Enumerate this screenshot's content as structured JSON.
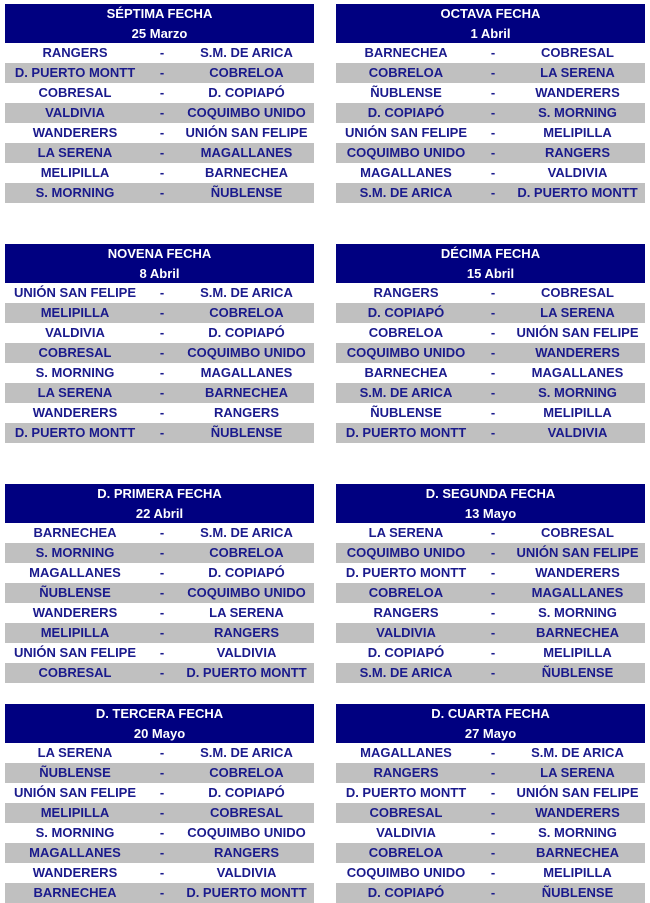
{
  "colors": {
    "header_bg": "#000080",
    "header_text": "#ffffff",
    "team_text": "#1a1a8c",
    "stripe": "#c0c0c0"
  },
  "rounds": [
    {
      "title": "SÉPTIMA FECHA",
      "date": "25 Marzo",
      "matches": [
        [
          "RANGERS",
          "S.M. DE ARICA"
        ],
        [
          "D. PUERTO MONTT",
          "COBRELOA"
        ],
        [
          "COBRESAL",
          "D. COPIAPÓ"
        ],
        [
          "VALDIVIA",
          "COQUIMBO UNIDO"
        ],
        [
          "WANDERERS",
          "UNIÓN SAN FELIPE"
        ],
        [
          "LA SERENA",
          "MAGALLANES"
        ],
        [
          "MELIPILLA",
          "BARNECHEA"
        ],
        [
          "S. MORNING",
          "ÑUBLENSE"
        ]
      ]
    },
    {
      "title": "OCTAVA FECHA",
      "date": "1 Abril",
      "matches": [
        [
          "BARNECHEA",
          "COBRESAL"
        ],
        [
          "COBRELOA",
          "LA SERENA"
        ],
        [
          "ÑUBLENSE",
          "WANDERERS"
        ],
        [
          "D. COPIAPÓ",
          "S. MORNING"
        ],
        [
          "UNIÓN SAN FELIPE",
          "MELIPILLA"
        ],
        [
          "COQUIMBO UNIDO",
          "RANGERS"
        ],
        [
          "MAGALLANES",
          "VALDIVIA"
        ],
        [
          "S.M. DE ARICA",
          "D. PUERTO MONTT"
        ]
      ]
    },
    {
      "title": "NOVENA FECHA",
      "date": "8 Abril",
      "matches": [
        [
          "UNIÓN SAN FELIPE",
          "S.M. DE ARICA"
        ],
        [
          "MELIPILLA",
          "COBRELOA"
        ],
        [
          "VALDIVIA",
          "D. COPIAPÓ"
        ],
        [
          "COBRESAL",
          "COQUIMBO UNIDO"
        ],
        [
          "S. MORNING",
          "MAGALLANES"
        ],
        [
          "LA SERENA",
          "BARNECHEA"
        ],
        [
          "WANDERERS",
          "RANGERS"
        ],
        [
          "D. PUERTO MONTT",
          "ÑUBLENSE"
        ]
      ]
    },
    {
      "title": "DÉCIMA FECHA",
      "date": "15 Abril",
      "matches": [
        [
          "RANGERS",
          "COBRESAL"
        ],
        [
          "D. COPIAPÓ",
          "LA SERENA"
        ],
        [
          "COBRELOA",
          "UNIÓN SAN FELIPE"
        ],
        [
          "COQUIMBO UNIDO",
          "WANDERERS"
        ],
        [
          "BARNECHEA",
          "MAGALLANES"
        ],
        [
          "S.M. DE ARICA",
          "S. MORNING"
        ],
        [
          "ÑUBLENSE",
          "MELIPILLA"
        ],
        [
          "D. PUERTO MONTT",
          "VALDIVIA"
        ]
      ]
    },
    {
      "title": "D. PRIMERA FECHA",
      "date": "22 Abril",
      "matches": [
        [
          "BARNECHEA",
          "S.M. DE ARICA"
        ],
        [
          "S. MORNING",
          "COBRELOA"
        ],
        [
          "MAGALLANES",
          "D. COPIAPÓ"
        ],
        [
          "ÑUBLENSE",
          "COQUIMBO UNIDO"
        ],
        [
          "WANDERERS",
          "LA SERENA"
        ],
        [
          "MELIPILLA",
          "RANGERS"
        ],
        [
          "UNIÓN SAN FELIPE",
          "VALDIVIA"
        ],
        [
          "COBRESAL",
          "D. PUERTO MONTT"
        ]
      ]
    },
    {
      "title": "D. SEGUNDA FECHA",
      "date": "13 Mayo",
      "matches": [
        [
          "LA SERENA",
          "COBRESAL"
        ],
        [
          "COQUIMBO UNIDO",
          "UNIÓN SAN FELIPE"
        ],
        [
          "D. PUERTO MONTT",
          "WANDERERS"
        ],
        [
          "COBRELOA",
          "MAGALLANES"
        ],
        [
          "RANGERS",
          "S. MORNING"
        ],
        [
          "VALDIVIA",
          "BARNECHEA"
        ],
        [
          "D. COPIAPÓ",
          "MELIPILLA"
        ],
        [
          "S.M. DE ARICA",
          "ÑUBLENSE"
        ]
      ]
    },
    {
      "title": "D. TERCERA FECHA",
      "date": "20 Mayo",
      "matches": [
        [
          "LA SERENA",
          "S.M. DE ARICA"
        ],
        [
          "ÑUBLENSE",
          "COBRELOA"
        ],
        [
          "UNIÓN SAN FELIPE",
          "D. COPIAPÓ"
        ],
        [
          "MELIPILLA",
          "COBRESAL"
        ],
        [
          "S. MORNING",
          "COQUIMBO UNIDO"
        ],
        [
          "MAGALLANES",
          "RANGERS"
        ],
        [
          "WANDERERS",
          "VALDIVIA"
        ],
        [
          "BARNECHEA",
          "D. PUERTO MONTT"
        ]
      ]
    },
    {
      "title": "D. CUARTA FECHA",
      "date": "27 Mayo",
      "matches": [
        [
          "MAGALLANES",
          "S.M. DE ARICA"
        ],
        [
          "RANGERS",
          "LA SERENA"
        ],
        [
          "D. PUERTO MONTT",
          "UNIÓN SAN FELIPE"
        ],
        [
          "COBRESAL",
          "WANDERERS"
        ],
        [
          "VALDIVIA",
          "S. MORNING"
        ],
        [
          "COBRELOA",
          "BARNECHEA"
        ],
        [
          "COQUIMBO UNIDO",
          "MELIPILLA"
        ],
        [
          "D. COPIAPÓ",
          "ÑUBLENSE"
        ]
      ]
    }
  ],
  "separator": "-"
}
